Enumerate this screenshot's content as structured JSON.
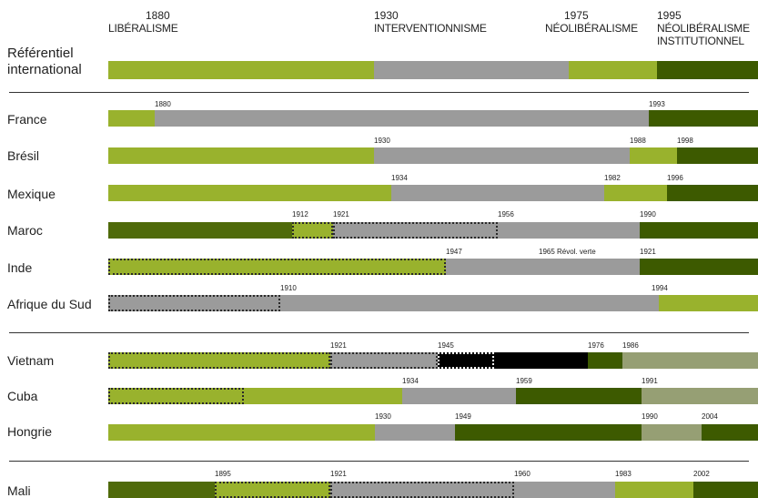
{
  "colors": {
    "liberal": "#99b22d",
    "interv": "#9b9b9b",
    "neolib": "#99b22d",
    "neoinst": "#3d5a00",
    "olive": "#4f6a0a",
    "socialist": "#3d5a00",
    "black": "#000000",
    "grayGreen": "#969f74"
  },
  "reference": {
    "label_line1": "Référentiel",
    "label_line2": "international",
    "eras": [
      {
        "year": "1880",
        "name": "LIBÉRALISME"
      },
      {
        "year": "1930",
        "name": "INTERVENTIONNISME"
      },
      {
        "year": "1975",
        "name": "NÉOLIBÉRALISME"
      },
      {
        "year": "1995",
        "name": "NÉOLIBÉRALISME",
        "name2": "INSTITUTIONNEL"
      }
    ]
  },
  "countries": [
    {
      "name": "France",
      "years": [
        "1880",
        "1993"
      ]
    },
    {
      "name": "Brésil",
      "years": [
        "1930",
        "1988",
        "1998"
      ]
    },
    {
      "name": "Mexique",
      "years": [
        "1934",
        "1982",
        "1996"
      ]
    },
    {
      "name": "Maroc",
      "years": [
        "1912",
        "1921",
        "1956",
        "1990"
      ]
    },
    {
      "name": "Inde",
      "years": [
        "1947",
        "1965 Révol. verte",
        "1921"
      ]
    },
    {
      "name": "Afrique du Sud",
      "years": [
        "1910",
        "1994"
      ]
    },
    {
      "name": "Vietnam",
      "years": [
        "1921",
        "1945",
        "1976",
        "1986"
      ]
    },
    {
      "name": "Cuba",
      "years": [
        "1934",
        "1959",
        "1991"
      ]
    },
    {
      "name": "Hongrie",
      "years": [
        "1930",
        "1949",
        "1990",
        "2004"
      ]
    },
    {
      "name": "Mali",
      "years": [
        "1895",
        "1921",
        "1960",
        "1983",
        "2002"
      ]
    }
  ]
}
